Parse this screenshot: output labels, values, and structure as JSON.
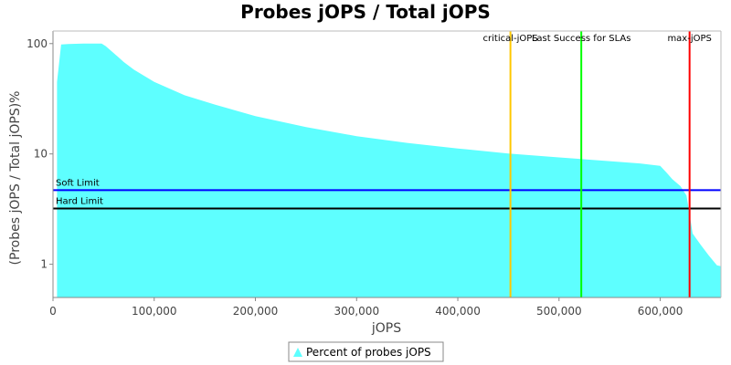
{
  "chart_data": {
    "type": "area",
    "title": "Probes jOPS / Total jOPS",
    "xlabel": "jOPS",
    "ylabel": "(Probes jOPS / Total jOPS)%",
    "xlim": [
      0,
      660000
    ],
    "ylim": [
      0.5,
      130
    ],
    "yscale": "log",
    "x_ticks": [
      0,
      100000,
      200000,
      300000,
      400000,
      500000,
      600000
    ],
    "x_tick_labels": [
      "0",
      "100,000",
      "200,000",
      "300,000",
      "400,000",
      "500,000",
      "600,000"
    ],
    "y_ticks": [
      1,
      10,
      100
    ],
    "y_tick_labels": [
      "1",
      "10",
      "100"
    ],
    "grid": false,
    "legend_position": "bottom",
    "series": [
      {
        "name": "Percent of probes jOPS",
        "color": "#5effff",
        "x": [
          4000,
          8000,
          15000,
          30000,
          48000,
          52000,
          60000,
          70000,
          80000,
          100000,
          130000,
          160000,
          200000,
          250000,
          300000,
          350000,
          400000,
          450000,
          500000,
          550000,
          580000,
          600000,
          606000,
          612000,
          620000,
          626000,
          632000,
          640000,
          648000,
          656000,
          660000
        ],
        "values": [
          45,
          98,
          99,
          100,
          100,
          95,
          82,
          68,
          58,
          45,
          34,
          28,
          22,
          17.5,
          14.5,
          12.6,
          11.2,
          10.1,
          9.3,
          8.6,
          8.2,
          7.8,
          6.8,
          5.9,
          5.1,
          4.2,
          1.9,
          1.5,
          1.2,
          0.98,
          0.96
        ]
      }
    ],
    "limits": [
      {
        "name": "Soft Limit",
        "value": 4.7,
        "color": "#0000ff"
      },
      {
        "name": "Hard Limit",
        "value": 3.2,
        "color": "#000000"
      }
    ],
    "markers": [
      {
        "name": "critical-jOPS",
        "x": 452000,
        "color": "#ffc800"
      },
      {
        "name": "Last Success for SLAs",
        "x": 522000,
        "color": "#00ff00"
      },
      {
        "name": "max-jOPS",
        "x": 629000,
        "color": "#ff0000"
      }
    ]
  }
}
